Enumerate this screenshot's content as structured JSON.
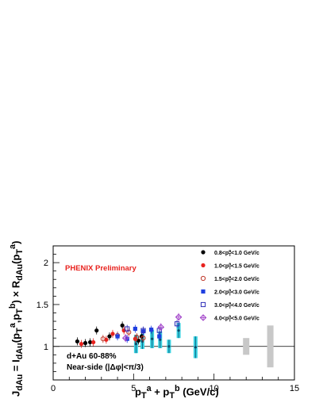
{
  "chart_data": {
    "type": "scatter",
    "ylabel_html": "J<sub>dAu</sub> = I<sub>dAu</sub>(p<sub>T</sub><sup>a</sup>,p<sub>T</sub><sup>b</sup>) &#215; R<sub>dAu</sub>(p<sub>T</sub><sup>a</sup>)",
    "xlabel_html": "p<sub>T</sub><sup>a</sup> + p<sub>T</sub><sup>b</sup> (GeV/c)",
    "xlim": [
      0,
      15
    ],
    "ylim": [
      0.6,
      2.2
    ],
    "x_ticks": [
      "0",
      "5",
      "10",
      "15"
    ],
    "y_ticks": [
      "1",
      "1.5",
      "2"
    ],
    "reference_line": 1,
    "annotation_preliminary": "PHENIX Preliminary",
    "annotation_system": "d+Au 60-88%",
    "annotation_selection": "Near-side (|Δφ|<π/3)",
    "legend_placement": "top-right",
    "legend_entries": [
      {
        "text": "0.8<p",
        "sup": "a",
        "rest": "<1.0 GeV/c"
      },
      {
        "text": "1.0<p",
        "sup": "a",
        "rest": "<1.5 GeV/c"
      },
      {
        "text": "1.5<p",
        "sup": "a",
        "rest": "<2.0 GeV/c"
      },
      {
        "text": "2.0<p",
        "sup": "a",
        "rest": "<3.0 GeV/c"
      },
      {
        "text": "3.0<p",
        "sup": "a",
        "rest": "<4.0 GeV/c"
      },
      {
        "text": "4.0<p",
        "sup": "a",
        "rest": "<5.0 GeV/c"
      }
    ],
    "series": [
      {
        "name": "0.8<pT^a<1.0 GeV/c",
        "marker": "filled-circle",
        "color": "#000000",
        "points": [
          [
            1.5,
            1.06
          ],
          [
            2.0,
            1.04
          ],
          [
            2.3,
            1.05
          ],
          [
            2.7,
            1.19
          ],
          [
            3.5,
            1.12
          ],
          [
            4.3,
            1.25
          ],
          [
            5.3,
            1.07
          ],
          [
            5.5,
            1.12
          ]
        ]
      },
      {
        "name": "1.0<pT^a<1.5 GeV/c",
        "marker": "filled-circle",
        "color": "#e8221e",
        "points": [
          [
            1.75,
            1.03
          ],
          [
            2.5,
            1.05
          ],
          [
            3.3,
            1.08
          ],
          [
            3.7,
            1.15
          ],
          [
            4.4,
            1.19
          ],
          [
            5.1,
            1.09
          ]
        ]
      },
      {
        "name": "1.5<pT^a<2.0 GeV/c",
        "marker": "open-circle",
        "color": "#c0392b",
        "points": [
          [
            3.1,
            1.09
          ],
          [
            4.0,
            1.13
          ],
          [
            4.7,
            1.17
          ],
          [
            5.2,
            1.11
          ],
          [
            5.6,
            1.1
          ]
        ]
      },
      {
        "name": "2.0<pT^a<3.0 GeV/c",
        "marker": "filled-square",
        "color": "#1f3fe0",
        "points": [
          [
            4.0,
            1.12
          ],
          [
            4.6,
            1.09
          ],
          [
            5.1,
            1.21
          ],
          [
            5.6,
            1.18
          ],
          [
            6.1,
            1.2
          ],
          [
            6.6,
            1.12
          ]
        ]
      },
      {
        "name": "3.0<pT^a<4.0 GeV/c",
        "marker": "open-square",
        "color": "#2d2db8",
        "points": [
          [
            4.6,
            1.21
          ],
          [
            5.6,
            1.19
          ],
          [
            6.6,
            1.19
          ],
          [
            7.7,
            1.27
          ]
        ]
      },
      {
        "name": "4.0<pT^a<5.0 GeV/c",
        "marker": "open-diamond-cross",
        "color": "#a040c8",
        "points": [
          [
            4.5,
            1.1
          ],
          [
            6.7,
            1.23
          ],
          [
            7.8,
            1.35
          ]
        ]
      }
    ],
    "systematic_bands": [
      {
        "x": 5.15,
        "y": 1.03,
        "half": 0.11
      },
      {
        "x": 5.55,
        "y": 1.06,
        "half": 0.09
      },
      {
        "x": 6.15,
        "y": 1.09,
        "half": 0.11
      },
      {
        "x": 6.65,
        "y": 1.08,
        "half": 0.1
      },
      {
        "x": 7.2,
        "y": 1.0,
        "half": 0.08
      },
      {
        "x": 7.8,
        "y": 1.19,
        "half": 0.09
      },
      {
        "x": 8.85,
        "y": 0.99,
        "half": 0.13
      }
    ],
    "global_uncertainty_boxes": [
      {
        "x": 12.0,
        "y_low": 0.9,
        "y_high": 1.1
      },
      {
        "x": 13.5,
        "y_low": 0.75,
        "y_high": 1.25
      }
    ],
    "grid": false
  }
}
